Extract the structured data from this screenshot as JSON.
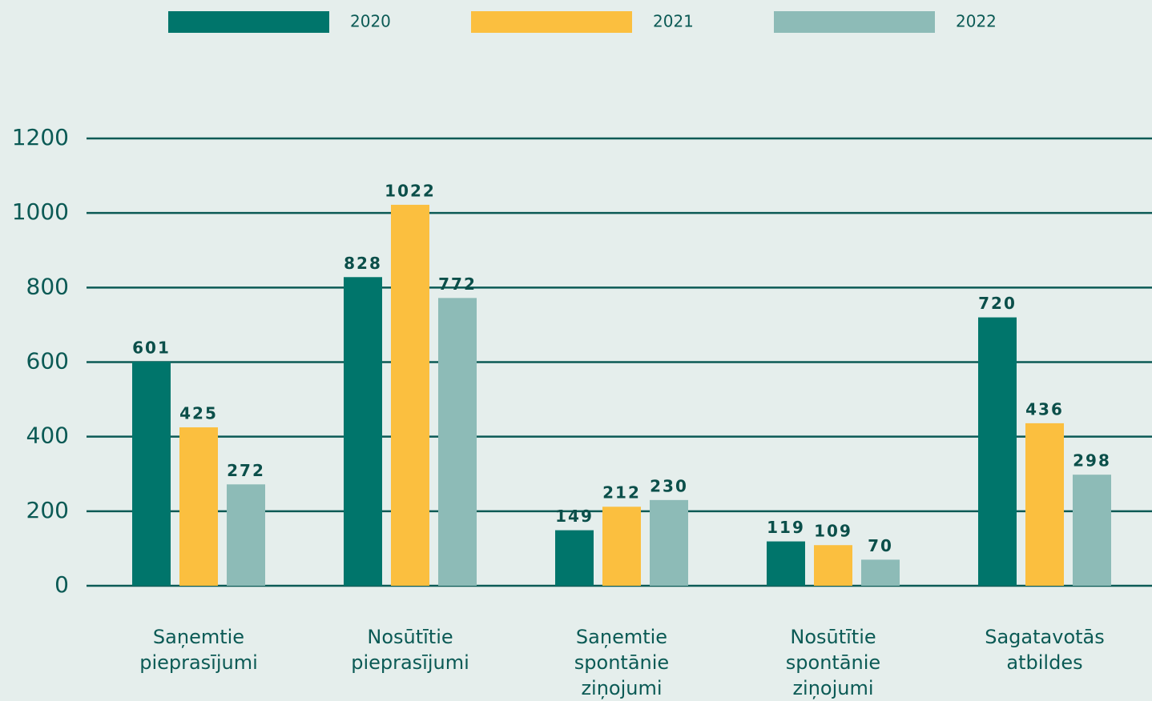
{
  "chart_data": {
    "type": "bar",
    "categories": [
      "Saņemtie pieprasījumi",
      "Nosūtītie pieprasījumi",
      "Saņemtie spontānie ziņojumi",
      "Nosūtītie spontānie ziņojumi",
      "Sagatavotās atbildes"
    ],
    "series": [
      {
        "name": "2020",
        "color": "#00756b",
        "values": [
          601,
          828,
          149,
          119,
          720
        ]
      },
      {
        "name": "2021",
        "color": "#fbbf3f",
        "values": [
          425,
          1022,
          212,
          109,
          436
        ]
      },
      {
        "name": "2022",
        "color": "#8dbbb7",
        "values": [
          272,
          772,
          230,
          70,
          298
        ]
      }
    ],
    "ylim": [
      0,
      1200
    ],
    "yticks": [
      0,
      200,
      400,
      600,
      800,
      1000,
      1200
    ],
    "grid": true,
    "legend": "top"
  }
}
